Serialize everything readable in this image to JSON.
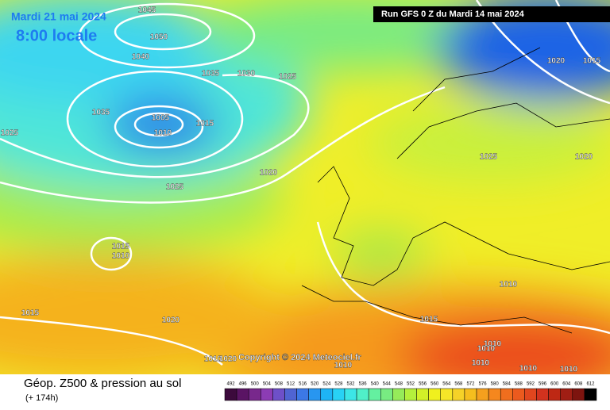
{
  "header": {
    "date": "Mardi 21 mai 2024",
    "time": "8:00 locale",
    "run": "Run GFS 0 Z du Mardi 14 mai 2024"
  },
  "isobar_labels": [
    1045,
    1050,
    1040,
    1035,
    1030,
    1025,
    1035,
    1005,
    1010,
    1015,
    1025,
    1020,
    1025,
    1015,
    1010,
    1015,
    1020,
    1015,
    1025,
    1020,
    1020,
    1015,
    1010,
    1010,
    1010,
    1010,
    1010,
    1010,
    1010,
    1010,
    1020
  ],
  "copyright": "Copyright © 2024 Meteociel.fr",
  "footer": {
    "title": "Géop. Z500 & pression au sol",
    "subtitle": "(+ 174h)"
  },
  "scale": {
    "labels": [
      492,
      496,
      500,
      504,
      508,
      512,
      516,
      520,
      524,
      528,
      532,
      536,
      540,
      544,
      548,
      552,
      556,
      560,
      564,
      568,
      572,
      576,
      580,
      584,
      588,
      592,
      596,
      600,
      604,
      608,
      612
    ],
    "colors": [
      "#3c0a3c",
      "#5a1464",
      "#78288c",
      "#8c3cb4",
      "#6e50c8",
      "#5064d2",
      "#3c78e6",
      "#2896f0",
      "#1eb4f5",
      "#28d2f5",
      "#3ce6e6",
      "#50f0c8",
      "#64f0a0",
      "#78eb82",
      "#96eb5a",
      "#b4f03c",
      "#d2f028",
      "#f0f01e",
      "#f5e628",
      "#f5d228",
      "#f5be1e",
      "#f5a01e",
      "#f5871e",
      "#f06e1e",
      "#eb5a1e",
      "#e1461e",
      "#d2321e",
      "#be2814",
      "#a01e14",
      "#7d140f",
      "#000000"
    ]
  }
}
